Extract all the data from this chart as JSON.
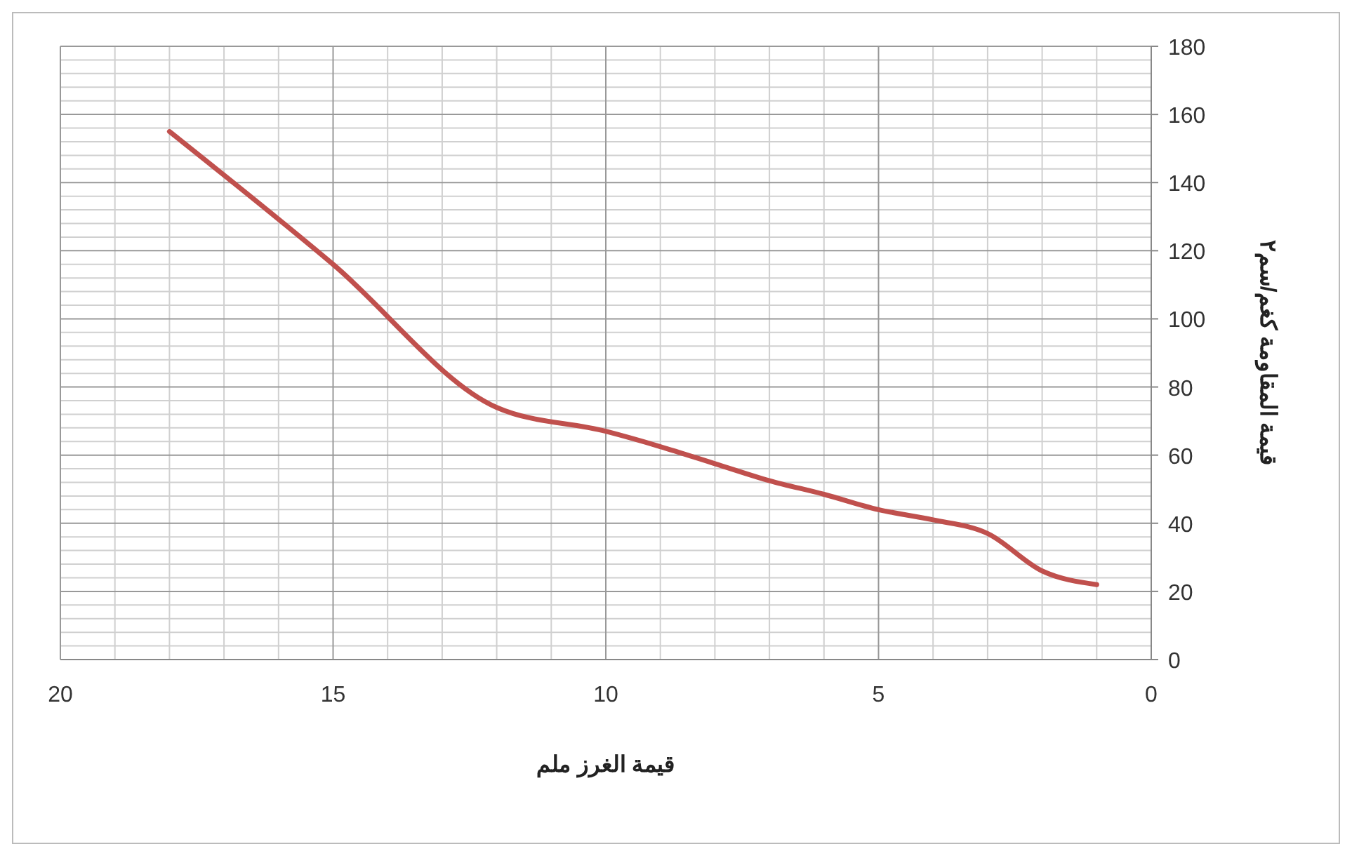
{
  "chart_data": {
    "type": "line",
    "xlabel": "قيمة الغرز ملم",
    "ylabel": "قيمة المقاومة كغم/سم٢",
    "x": [
      18,
      15,
      12,
      10,
      9,
      8,
      7,
      6,
      5,
      4,
      3,
      2,
      1
    ],
    "series": [
      {
        "color": "#c0504d",
        "values": [
          155,
          116,
          74,
          67,
          62.5,
          57.5,
          52.5,
          48.5,
          44,
          41,
          37,
          26,
          22
        ]
      }
    ],
    "xlim": [
      20,
      0
    ],
    "xticks": [
      20,
      15,
      10,
      5,
      0
    ],
    "ylim": [
      0,
      180
    ],
    "yticks": [
      0,
      20,
      40,
      60,
      80,
      100,
      120,
      140,
      160,
      180
    ],
    "grid": true,
    "marker": "none",
    "line_style": "solid"
  }
}
